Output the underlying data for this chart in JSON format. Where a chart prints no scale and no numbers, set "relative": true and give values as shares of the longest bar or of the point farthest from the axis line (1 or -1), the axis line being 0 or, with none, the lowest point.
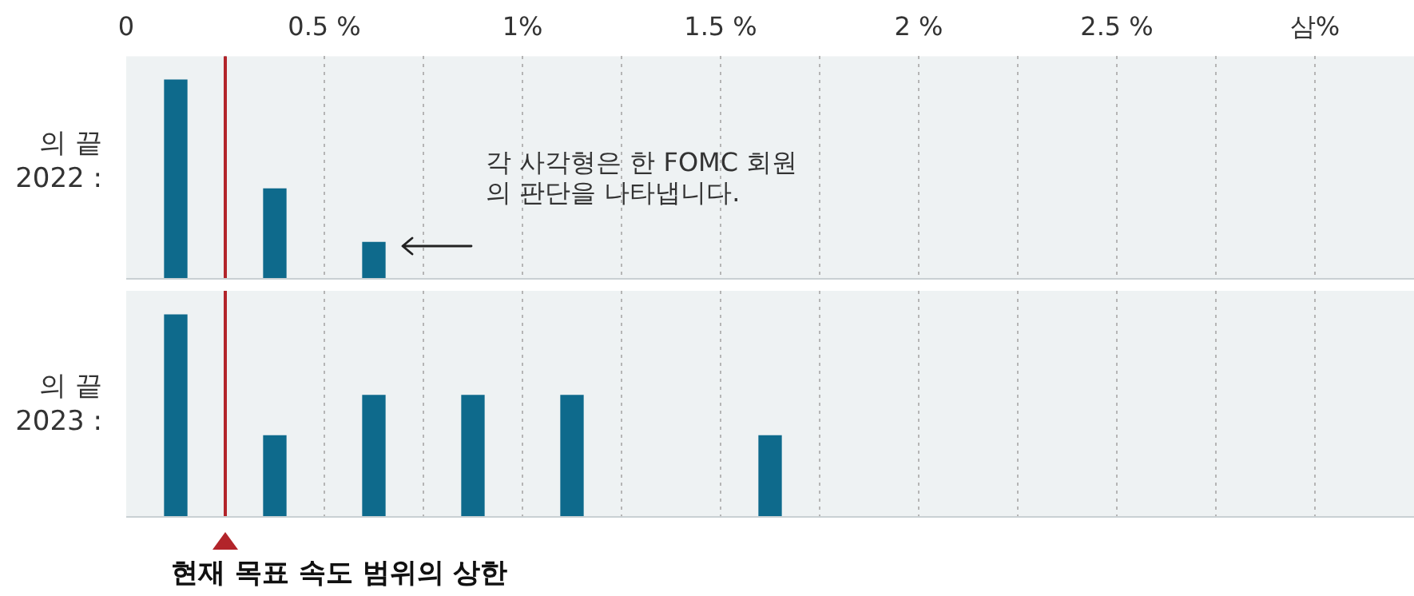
{
  "chart_data": [
    {
      "type": "bar",
      "relative": true,
      "ylabel": "의 끝 2022 :",
      "grid": "x",
      "tick_labels": "x",
      "x": [
        0.125,
        0.375,
        0.625
      ],
      "series": [
        {
          "color": "#0e6a8c",
          "values": [
            1,
            0.45,
            0.18
          ]
        }
      ],
      "xlim": [
        0,
        3.25
      ],
      "xticks": [
        0,
        {
          "value": 0.25,
          "label": null
        },
        {
          "value": 0.5,
          "label": "0.5 %"
        },
        {
          "value": 0.75,
          "label": null
        },
        {
          "value": 1,
          "label": "1%"
        },
        {
          "value": 1.25,
          "label": null
        },
        {
          "value": 1.5,
          "label": "1.5 %"
        },
        {
          "value": 1.75,
          "label": null
        },
        {
          "value": 2,
          "label": "2 %"
        },
        {
          "value": 2.25,
          "label": null
        },
        {
          "value": 2.5,
          "label": "2.5 %"
        },
        {
          "value": 2.75,
          "label": null
        },
        {
          "value": 3,
          "label": "삼%"
        }
      ],
      "ref_lines": [
        {
          "axis": "x",
          "value": 0.25,
          "color": "#b2242a"
        }
      ],
      "annotations": [
        "각 사각형은 한 FOMC 회원의 판단을 나타냅니다."
      ]
    },
    {
      "type": "bar",
      "relative": true,
      "ylabel": "의 끝 2023 :",
      "grid": "x",
      "tick_labels": false,
      "x": [
        0.125,
        0.375,
        0.625,
        0.875,
        1.125,
        1.625
      ],
      "series": [
        {
          "color": "#0e6a8c",
          "values": [
            1,
            0.4,
            0.6,
            0.6,
            0.6,
            0.4
          ]
        }
      ],
      "xlim": [
        0,
        3.25
      ],
      "xticks": [
        0,
        0.25,
        0.5,
        0.75,
        1,
        1.25,
        1.5,
        1.75,
        2,
        2.25,
        2.5,
        2.75,
        3
      ],
      "ref_lines": [
        {
          "axis": "x",
          "value": 0.25,
          "color": "#b2242a",
          "label": "현재 목표 속도 범위의 상한"
        }
      ]
    }
  ]
}
